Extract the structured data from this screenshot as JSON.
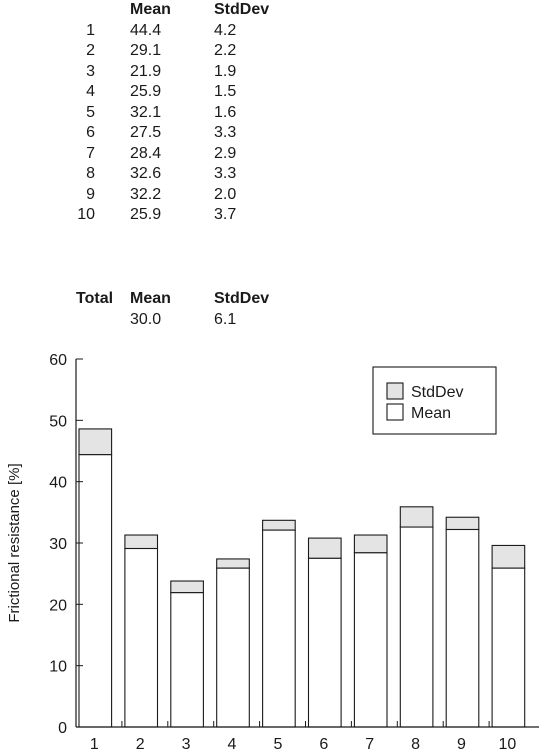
{
  "table": {
    "headers": {
      "mean": "Mean",
      "stddev": "StdDev"
    },
    "rows": [
      {
        "idx": "1",
        "mean": "44.4",
        "sd": "4.2"
      },
      {
        "idx": "2",
        "mean": "29.1",
        "sd": "2.2"
      },
      {
        "idx": "3",
        "mean": "21.9",
        "sd": "1.9"
      },
      {
        "idx": "4",
        "mean": "25.9",
        "sd": "1.5"
      },
      {
        "idx": "5",
        "mean": "32.1",
        "sd": "1.6"
      },
      {
        "idx": "6",
        "mean": "27.5",
        "sd": "3.3"
      },
      {
        "idx": "7",
        "mean": "28.4",
        "sd": "2.9"
      },
      {
        "idx": "8",
        "mean": "32.6",
        "sd": "3.3"
      },
      {
        "idx": "9",
        "mean": "32.2",
        "sd": "2.0"
      },
      {
        "idx": "10",
        "mean": "25.9",
        "sd": "3.7"
      }
    ],
    "total": {
      "label": "Total",
      "mean_header": "Mean",
      "stddev_header": "StdDev",
      "mean": "30.0",
      "sd": "6.1"
    }
  },
  "chart_data": {
    "type": "bar",
    "stacked": true,
    "categories": [
      "1",
      "2",
      "3",
      "4",
      "5",
      "6",
      "7",
      "8",
      "9",
      "10"
    ],
    "series": [
      {
        "name": "Mean",
        "values": [
          44.4,
          29.1,
          21.9,
          25.9,
          32.1,
          27.5,
          28.4,
          32.6,
          32.2,
          25.9
        ],
        "color": "#ffffff"
      },
      {
        "name": "StdDev",
        "values": [
          4.2,
          2.2,
          1.9,
          1.5,
          1.6,
          3.3,
          2.9,
          3.3,
          2.0,
          3.7
        ],
        "color": "#e4e4e4"
      }
    ],
    "ylabel": "Frictional resistance [%]",
    "xlabel": "",
    "ylim": [
      0,
      60
    ],
    "yticks": [
      0,
      10,
      20,
      30,
      40,
      50,
      60
    ],
    "legend": {
      "position": "top-right",
      "order": [
        "StdDev",
        "Mean"
      ]
    },
    "grid": false
  }
}
